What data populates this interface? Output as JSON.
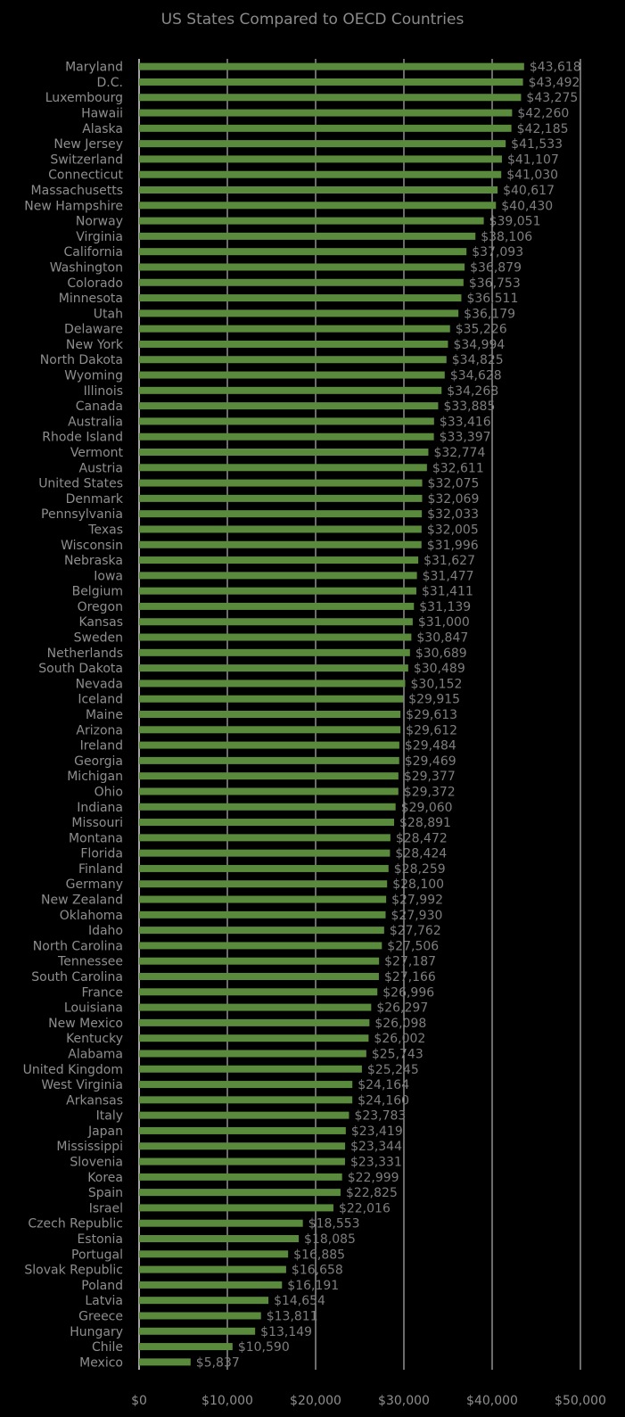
{
  "chart_data": {
    "type": "bar",
    "orientation": "horizontal",
    "title": "US States Compared to OECD Countries",
    "xlabel": "",
    "ylabel": "",
    "xlim": [
      0,
      50000
    ],
    "grid": true,
    "legend": "none",
    "colors": {
      "bar": "#5a8a3c",
      "grid": "#d9d9d9",
      "background": "#000000",
      "text": "#8e8e8e"
    },
    "ticks": [
      "$0",
      "$10,000",
      "$20,000",
      "$30,000",
      "$40,000",
      "$50,000"
    ],
    "tick_values": [
      0,
      10000,
      20000,
      30000,
      40000,
      50000
    ],
    "categories": [
      "Maryland",
      "D.C.",
      "Luxembourg",
      "Hawaii",
      "Alaska",
      "New Jersey",
      "Switzerland",
      "Connecticut",
      "Massachusetts",
      "New Hampshire",
      "Norway",
      "Virginia",
      "California",
      "Washington",
      "Colorado",
      "Minnesota",
      "Utah",
      "Delaware",
      "New York",
      "North Dakota",
      "Wyoming",
      "Illinois",
      "Canada",
      "Australia",
      "Rhode Island",
      "Vermont",
      "Austria",
      "United States",
      "Denmark",
      "Pennsylvania",
      "Texas",
      "Wisconsin",
      "Nebraska",
      "Iowa",
      "Belgium",
      "Oregon",
      "Kansas",
      "Sweden",
      "Netherlands",
      "South Dakota",
      "Nevada",
      "Iceland",
      "Maine",
      "Arizona",
      "Ireland",
      "Georgia",
      "Michigan",
      "Ohio",
      "Indiana",
      "Missouri",
      "Montana",
      "Florida",
      "Finland",
      "Germany",
      "New Zealand",
      "Oklahoma",
      "Idaho",
      "North Carolina",
      "Tennessee",
      "South Carolina",
      "France",
      "Louisiana",
      "New Mexico",
      "Kentucky",
      "Alabama",
      "United Kingdom",
      "West Virginia",
      "Arkansas",
      "Italy",
      "Japan",
      "Mississippi",
      "Slovenia",
      "Korea",
      "Spain",
      "Israel",
      "Czech Republic",
      "Estonia",
      "Portugal",
      "Slovak Republic",
      "Poland",
      "Latvia",
      "Greece",
      "Hungary",
      "Chile",
      "Mexico"
    ],
    "values": [
      43618,
      43492,
      43275,
      42260,
      42185,
      41533,
      41107,
      41030,
      40617,
      40430,
      39051,
      38106,
      37093,
      36879,
      36753,
      36511,
      36179,
      35226,
      34994,
      34825,
      34628,
      34268,
      33885,
      33416,
      33397,
      32774,
      32611,
      32075,
      32069,
      32033,
      32005,
      31996,
      31627,
      31477,
      31411,
      31139,
      31000,
      30847,
      30689,
      30489,
      30152,
      29915,
      29613,
      29612,
      29484,
      29469,
      29377,
      29372,
      29060,
      28891,
      28472,
      28424,
      28259,
      28100,
      27992,
      27930,
      27762,
      27506,
      27187,
      27166,
      26996,
      26297,
      26098,
      26002,
      25743,
      25245,
      24164,
      24160,
      23783,
      23419,
      23344,
      23331,
      22999,
      22825,
      22016,
      18553,
      18085,
      16885,
      16658,
      16191,
      14654,
      13811,
      13149,
      10590,
      5837
    ],
    "value_labels": [
      "$43,618",
      "$43,492",
      "$43,275",
      "$42,260",
      "$42,185",
      "$41,533",
      "$41,107",
      "$41,030",
      "$40,617",
      "$40,430",
      "$39,051",
      "$38,106",
      "$37,093",
      "$36,879",
      "$36,753",
      "$36,511",
      "$36,179",
      "$35,226",
      "$34,994",
      "$34,825",
      "$34,628",
      "$34,268",
      "$33,885",
      "$33,416",
      "$33,397",
      "$32,774",
      "$32,611",
      "$32,075",
      "$32,069",
      "$32,033",
      "$32,005",
      "$31,996",
      "$31,627",
      "$31,477",
      "$31,411",
      "$31,139",
      "$31,000",
      "$30,847",
      "$30,689",
      "$30,489",
      "$30,152",
      "$29,915",
      "$29,613",
      "$29,612",
      "$29,484",
      "$29,469",
      "$29,377",
      "$29,372",
      "$29,060",
      "$28,891",
      "$28,472",
      "$28,424",
      "$28,259",
      "$28,100",
      "$27,992",
      "$27,930",
      "$27,762",
      "$27,506",
      "$27,187",
      "$27,166",
      "$26,996",
      "$26,297",
      "$26,098",
      "$26,002",
      "$25,743",
      "$25,245",
      "$24,164",
      "$24,160",
      "$23,783",
      "$23,419",
      "$23,344",
      "$23,331",
      "$22,999",
      "$22,825",
      "$22,016",
      "$18,553",
      "$18,085",
      "$16,885",
      "$16,658",
      "$16,191",
      "$14,654",
      "$13,811",
      "$13,149",
      "$10,590",
      "$5,837"
    ]
  }
}
